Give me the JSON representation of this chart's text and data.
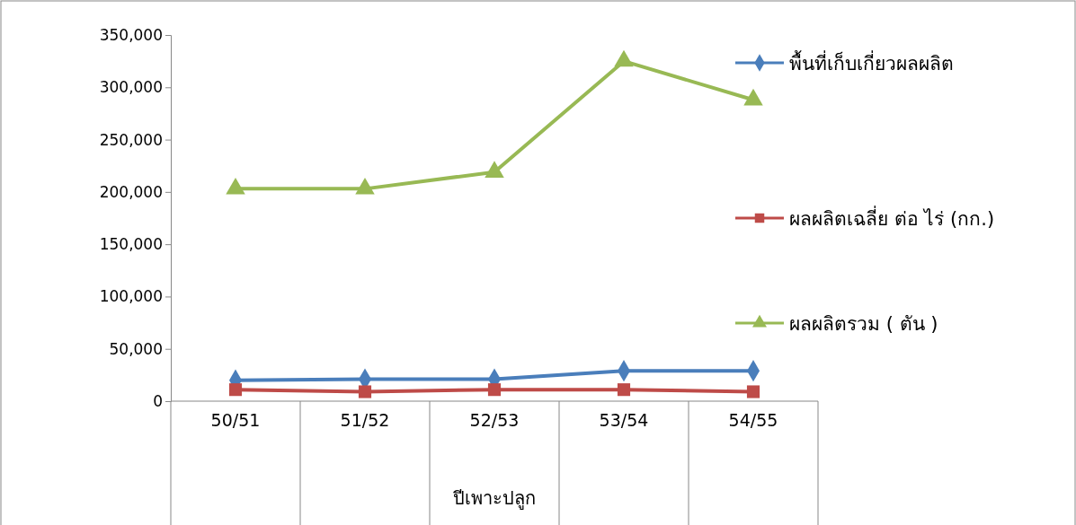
{
  "chart_data": {
    "type": "line",
    "xlabel": "ปีเพาะปลูก",
    "categories": [
      "50/51",
      "51/52",
      "52/53",
      "53/54",
      "54/55"
    ],
    "series": [
      {
        "name": "พื้นที่เก็บเกี่ยวผลผลิต",
        "color": "#4a7ebb",
        "marker": "diamond",
        "values": [
          20000,
          21000,
          21000,
          29000,
          29000
        ]
      },
      {
        "name": "ผลผลิตเฉลี่ย ต่อ ไร่ (กก.)",
        "color": "#be4b48",
        "marker": "square",
        "values": [
          11000,
          9000,
          11000,
          11000,
          9000
        ]
      },
      {
        "name": "ผลผลิตรวม ( ตัน )",
        "color": "#98b954",
        "marker": "triangle",
        "values": [
          203000,
          203000,
          219000,
          325000,
          288000
        ]
      }
    ],
    "ylim": [
      0,
      350000
    ],
    "yticks": [
      {
        "value": 0,
        "label": "0"
      },
      {
        "value": 50000,
        "label": "50,000"
      },
      {
        "value": 100000,
        "label": "100,000"
      },
      {
        "value": 150000,
        "label": "150,000"
      },
      {
        "value": 200000,
        "label": "200,000"
      },
      {
        "value": 250000,
        "label": "250,000"
      },
      {
        "value": 300000,
        "label": "300,000"
      },
      {
        "value": 350000,
        "label": "350,000"
      }
    ],
    "legend": "right",
    "grid": false,
    "line_style": "solid"
  }
}
